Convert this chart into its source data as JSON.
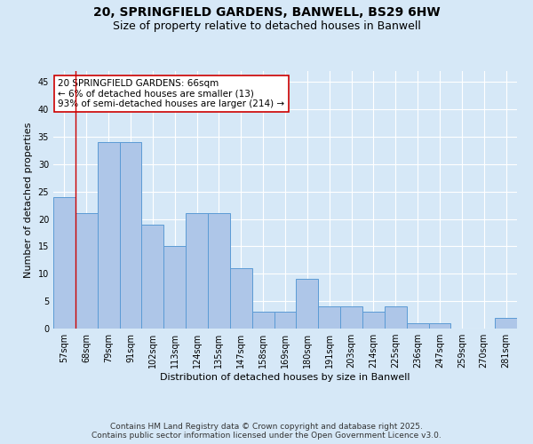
{
  "title_line1": "20, SPRINGFIELD GARDENS, BANWELL, BS29 6HW",
  "title_line2": "Size of property relative to detached houses in Banwell",
  "xlabel": "Distribution of detached houses by size in Banwell",
  "ylabel": "Number of detached properties",
  "categories": [
    "57sqm",
    "68sqm",
    "79sqm",
    "91sqm",
    "102sqm",
    "113sqm",
    "124sqm",
    "135sqm",
    "147sqm",
    "158sqm",
    "169sqm",
    "180sqm",
    "191sqm",
    "203sqm",
    "214sqm",
    "225sqm",
    "236sqm",
    "247sqm",
    "259sqm",
    "270sqm",
    "281sqm"
  ],
  "values": [
    24,
    21,
    34,
    34,
    19,
    15,
    21,
    21,
    11,
    3,
    3,
    9,
    4,
    4,
    3,
    4,
    1,
    1,
    0,
    0,
    2
  ],
  "bar_color": "#aec6e8",
  "bar_edge_color": "#5b9bd5",
  "highlight_line_color": "#cc0000",
  "annotation_text": "20 SPRINGFIELD GARDENS: 66sqm\n← 6% of detached houses are smaller (13)\n93% of semi-detached houses are larger (214) →",
  "annotation_box_color": "#ffffff",
  "annotation_box_edge_color": "#cc0000",
  "ylim": [
    0,
    47
  ],
  "yticks": [
    0,
    5,
    10,
    15,
    20,
    25,
    30,
    35,
    40,
    45
  ],
  "bg_color": "#d6e8f7",
  "footer_text": "Contains HM Land Registry data © Crown copyright and database right 2025.\nContains public sector information licensed under the Open Government Licence v3.0.",
  "title_fontsize": 10,
  "subtitle_fontsize": 9,
  "axis_label_fontsize": 8,
  "tick_fontsize": 7,
  "annotation_fontsize": 7.5,
  "footer_fontsize": 6.5
}
